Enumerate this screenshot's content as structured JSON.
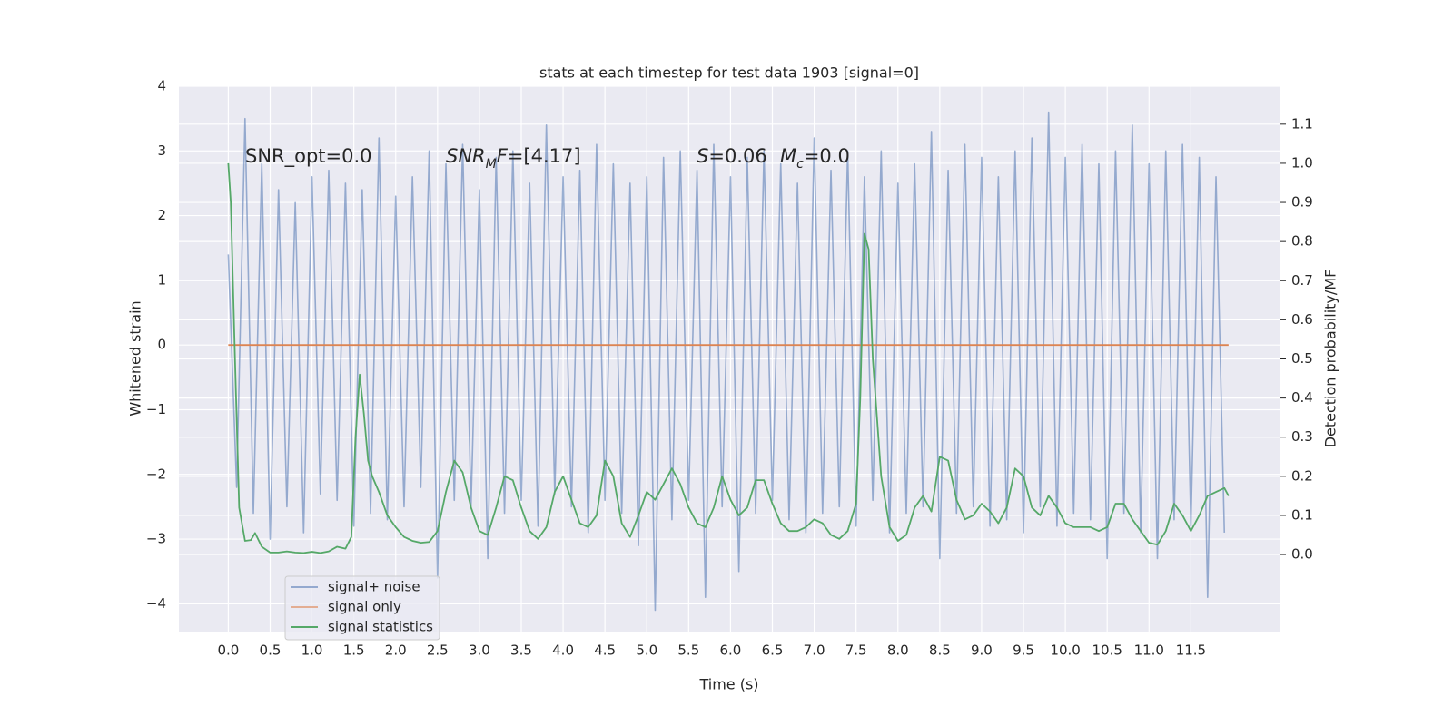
{
  "chart_data": {
    "type": "line",
    "title": "stats at each timestep for test data 1903 [signal=0]",
    "x_label": "Time (s)",
    "y_label": "Whitened strain",
    "y2_label": "Detection probability/MF",
    "grid": true,
    "background": "#eaeaf2",
    "legend": "lower left",
    "xlim": [
      -0.59,
      12.57
    ],
    "ylim": [
      -4.43,
      4.0
    ],
    "y2lim": [
      -0.197,
      1.197
    ],
    "xticks": [
      {
        "value": 0,
        "label": "0.0"
      },
      0.5,
      {
        "value": 1,
        "label": "1.0"
      },
      1.5,
      {
        "value": 2,
        "label": "2.0"
      },
      2.5,
      {
        "value": 3,
        "label": "3.0"
      },
      3.5,
      {
        "value": 4,
        "label": "4.0"
      },
      4.5,
      {
        "value": 5,
        "label": "5.0"
      },
      5.5,
      {
        "value": 6,
        "label": "6.0"
      },
      6.5,
      {
        "value": 7,
        "label": "7.0"
      },
      7.5,
      {
        "value": 8,
        "label": "8.0"
      },
      8.5,
      {
        "value": 9,
        "label": "9.0"
      },
      9.5,
      {
        "value": 10,
        "label": "10.0"
      },
      10.5,
      {
        "value": 11,
        "label": "11.0"
      },
      11.5
    ],
    "yticks": [
      {
        "value": -4,
        "label": "−4"
      },
      {
        "value": -3,
        "label": "−3"
      },
      {
        "value": -2,
        "label": "−2"
      },
      {
        "value": -1,
        "label": "−1"
      },
      0,
      1,
      2,
      3,
      4
    ],
    "y2ticks": [
      {
        "value": 0,
        "label": "0.0"
      },
      0.1,
      0.2,
      0.3,
      0.4,
      0.5,
      0.6,
      0.7,
      0.8,
      0.9,
      {
        "value": 1,
        "label": "1.0"
      },
      1.1
    ],
    "annotations": [
      [
        {
          "text": "SNR_opt=0.0"
        }
      ],
      [
        {
          "text": "SNR",
          "italic": true
        },
        {
          "text": "M",
          "italic": true,
          "sub": true
        },
        {
          "text": "F",
          "italic": true
        },
        {
          "text": "=[4.17]"
        }
      ],
      [
        {
          "text": "S",
          "italic": true
        },
        {
          "text": "=0.06"
        }
      ],
      [
        {
          "text": "M",
          "italic": true
        },
        {
          "text": "c",
          "italic": true,
          "sub": true
        },
        {
          "text": "=0.0"
        }
      ]
    ],
    "series": [
      {
        "name": "signal+ noise",
        "color": "#4c72b0",
        "opacity": 0.55,
        "x": [
          0,
          0.1,
          0.2,
          0.3,
          0.4,
          0.5,
          0.6,
          0.7,
          0.8,
          0.9,
          1,
          1.1,
          1.2,
          1.3,
          1.4,
          1.5,
          1.6,
          1.7,
          1.8,
          1.9,
          2,
          2.1,
          2.2,
          2.3,
          2.4,
          2.5,
          2.6,
          2.7,
          2.8,
          2.9,
          3,
          3.1,
          3.2,
          3.3,
          3.4,
          3.5,
          3.6,
          3.7,
          3.8,
          3.9,
          4,
          4.1,
          4.2,
          4.3,
          4.4,
          4.5,
          4.6,
          4.7,
          4.8,
          4.9,
          5,
          5.1,
          5.2,
          5.3,
          5.4,
          5.5,
          5.6,
          5.7,
          5.8,
          5.9,
          6,
          6.1,
          6.2,
          6.3,
          6.4,
          6.5,
          6.6,
          6.7,
          6.8,
          6.9,
          7,
          7.1,
          7.2,
          7.3,
          7.4,
          7.5,
          7.6,
          7.7,
          7.8,
          7.9,
          8,
          8.1,
          8.2,
          8.3,
          8.4,
          8.5,
          8.6,
          8.7,
          8.8,
          8.9,
          9,
          9.1,
          9.2,
          9.3,
          9.4,
          9.5,
          9.6,
          9.7,
          9.8,
          9.9,
          10,
          10.1,
          10.2,
          10.3,
          10.4,
          10.5,
          10.6,
          10.7,
          10.8,
          10.9,
          11,
          11.1,
          11.2,
          11.3,
          11.4,
          11.5,
          11.6,
          11.7,
          11.8,
          11.9
        ],
        "values": [
          1.4,
          -2.2,
          3.5,
          -2.6,
          2.8,
          -3.0,
          2.4,
          -2.5,
          2.2,
          -2.9,
          2.6,
          -2.3,
          2.7,
          -2.4,
          2.5,
          -2.8,
          2.4,
          -2.6,
          3.2,
          -2.7,
          2.3,
          -2.5,
          2.6,
          -2.2,
          3.0,
          -3.6,
          2.8,
          -2.4,
          3.1,
          -2.5,
          2.4,
          -3.3,
          2.9,
          -2.6,
          3.0,
          -2.4,
          2.5,
          -2.8,
          3.4,
          -2.3,
          2.6,
          -2.5,
          2.7,
          -2.9,
          3.1,
          -2.4,
          2.8,
          -2.6,
          2.5,
          -3.1,
          2.6,
          -4.1,
          2.9,
          -2.7,
          3.0,
          -2.4,
          2.7,
          -3.9,
          3.1,
          -2.5,
          2.6,
          -3.5,
          2.9,
          -2.6,
          3.0,
          -2.4,
          2.8,
          -2.7,
          2.5,
          -2.9,
          3.2,
          -2.6,
          2.7,
          -2.5,
          3.0,
          -2.8,
          2.6,
          -2.4,
          3.0,
          -2.9,
          2.5,
          -2.6,
          2.8,
          -2.5,
          3.3,
          -3.3,
          2.7,
          -2.6,
          3.1,
          -2.5,
          2.9,
          -2.8,
          2.6,
          -2.7,
          3.0,
          -2.9,
          3.2,
          -2.5,
          3.6,
          -2.8,
          2.9,
          -2.6,
          3.1,
          -2.7,
          2.8,
          -3.3,
          3.0,
          -2.6,
          3.4,
          -2.9,
          2.8,
          -3.3,
          3.0,
          -2.7,
          3.1,
          -2.8,
          2.9,
          -3.9,
          2.6,
          -2.9
        ]
      },
      {
        "name": "signal only",
        "color": "#dd8452",
        "opacity": 1,
        "x": [
          0,
          11.95
        ],
        "values": [
          0,
          0
        ]
      },
      {
        "name": "signal statistics",
        "color": "#55a868",
        "opacity": 1,
        "axis": "y2",
        "x": [
          0,
          0.03,
          0.08,
          0.13,
          0.2,
          0.27,
          0.32,
          0.4,
          0.5,
          0.6,
          0.7,
          0.8,
          0.9,
          1,
          1.1,
          1.2,
          1.3,
          1.4,
          1.47,
          1.52,
          1.57,
          1.62,
          1.67,
          1.72,
          1.8,
          1.9,
          2,
          2.1,
          2.2,
          2.3,
          2.4,
          2.5,
          2.6,
          2.7,
          2.8,
          2.9,
          3,
          3.1,
          3.2,
          3.3,
          3.4,
          3.5,
          3.6,
          3.7,
          3.8,
          3.9,
          4,
          4.1,
          4.2,
          4.3,
          4.4,
          4.5,
          4.6,
          4.7,
          4.8,
          4.9,
          5,
          5.1,
          5.2,
          5.3,
          5.4,
          5.5,
          5.6,
          5.7,
          5.8,
          5.9,
          6,
          6.1,
          6.2,
          6.3,
          6.4,
          6.5,
          6.6,
          6.7,
          6.8,
          6.9,
          7,
          7.1,
          7.2,
          7.3,
          7.4,
          7.5,
          7.55,
          7.6,
          7.65,
          7.7,
          7.8,
          7.9,
          8,
          8.1,
          8.2,
          8.3,
          8.4,
          8.5,
          8.6,
          8.7,
          8.8,
          8.9,
          9,
          9.1,
          9.2,
          9.3,
          9.4,
          9.5,
          9.6,
          9.7,
          9.8,
          9.9,
          10,
          10.1,
          10.2,
          10.3,
          10.4,
          10.5,
          10.6,
          10.7,
          10.8,
          10.9,
          11,
          11.1,
          11.2,
          11.3,
          11.4,
          11.5,
          11.6,
          11.7,
          11.8,
          11.9,
          11.95
        ],
        "values": [
          1.0,
          0.9,
          0.5,
          0.12,
          0.035,
          0.037,
          0.055,
          0.02,
          0.005,
          0.005,
          0.008,
          0.005,
          0.004,
          0.007,
          0.004,
          0.008,
          0.02,
          0.015,
          0.045,
          0.3,
          0.46,
          0.36,
          0.24,
          0.2,
          0.16,
          0.1,
          0.07,
          0.045,
          0.035,
          0.03,
          0.032,
          0.06,
          0.16,
          0.24,
          0.21,
          0.12,
          0.06,
          0.05,
          0.12,
          0.2,
          0.19,
          0.12,
          0.06,
          0.04,
          0.07,
          0.16,
          0.2,
          0.14,
          0.08,
          0.07,
          0.1,
          0.24,
          0.2,
          0.08,
          0.045,
          0.1,
          0.16,
          0.14,
          0.18,
          0.22,
          0.18,
          0.12,
          0.08,
          0.07,
          0.12,
          0.2,
          0.14,
          0.1,
          0.12,
          0.19,
          0.19,
          0.13,
          0.08,
          0.06,
          0.06,
          0.07,
          0.09,
          0.08,
          0.05,
          0.04,
          0.06,
          0.13,
          0.4,
          0.82,
          0.78,
          0.5,
          0.2,
          0.07,
          0.035,
          0.05,
          0.12,
          0.15,
          0.11,
          0.25,
          0.24,
          0.14,
          0.09,
          0.1,
          0.13,
          0.11,
          0.08,
          0.12,
          0.22,
          0.2,
          0.12,
          0.1,
          0.15,
          0.12,
          0.08,
          0.07,
          0.07,
          0.07,
          0.06,
          0.07,
          0.13,
          0.13,
          0.09,
          0.06,
          0.03,
          0.025,
          0.06,
          0.13,
          0.1,
          0.06,
          0.1,
          0.15,
          0.16,
          0.17,
          0.15
        ]
      }
    ]
  }
}
